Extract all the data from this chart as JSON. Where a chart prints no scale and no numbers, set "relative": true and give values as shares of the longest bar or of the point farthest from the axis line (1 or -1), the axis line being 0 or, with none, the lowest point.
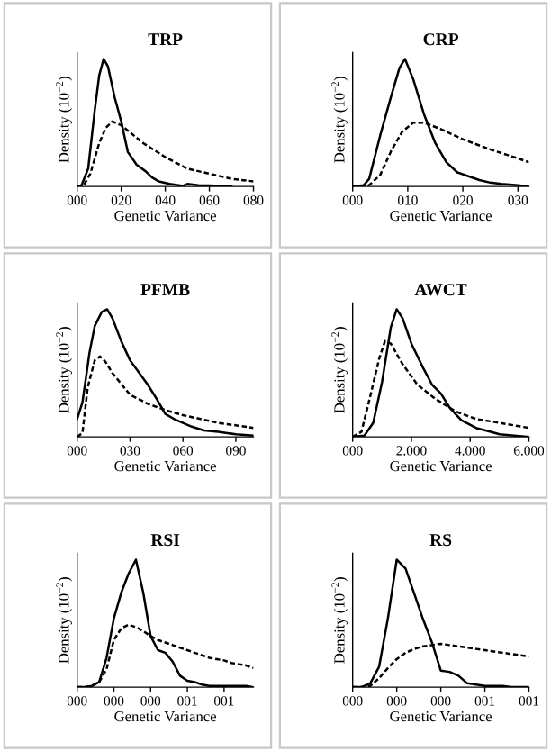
{
  "chart_data": [
    {
      "type": "line",
      "title": "TRP",
      "xlabel": "Genetic Variance",
      "ylabel": "Density (10$^{−2}$)",
      "relative": true,
      "xlim": [
        0,
        80
      ],
      "xticks": [
        {
          "value": 0,
          "label": "000"
        },
        {
          "value": 20,
          "label": "020"
        },
        {
          "value": 40,
          "label": "040"
        },
        {
          "value": 60,
          "label": "060"
        },
        {
          "value": 80,
          "label": "080"
        }
      ],
      "grid": false,
      "legend": false,
      "marker": "none",
      "series": [
        {
          "color": "#000000",
          "line_style": "solid",
          "x": [
            0,
            2,
            5,
            8,
            10,
            12,
            14,
            17,
            20,
            23,
            27,
            31,
            34,
            37,
            42,
            46,
            48,
            50,
            55,
            60,
            70
          ],
          "values": [
            0,
            0.01,
            0.14,
            0.6,
            0.87,
            1,
            0.94,
            0.7,
            0.51,
            0.27,
            0.17,
            0.12,
            0.07,
            0.04,
            0.02,
            0.01,
            0.005,
            0.02,
            0.01,
            0.007,
            0
          ]
        },
        {
          "color": "#000000",
          "line_style": "dashed",
          "x": [
            0,
            3,
            6,
            10,
            13,
            16,
            20,
            25,
            30,
            40,
            50,
            60,
            70,
            80
          ],
          "values": [
            0,
            0.01,
            0.1,
            0.34,
            0.46,
            0.51,
            0.48,
            0.41,
            0.34,
            0.23,
            0.14,
            0.1,
            0.06,
            0.04
          ]
        }
      ]
    },
    {
      "type": "line",
      "title": "CRP",
      "xlabel": "Genetic Variance",
      "ylabel": "Density (10$^{−2}$)",
      "relative": true,
      "xlim": [
        0,
        32
      ],
      "xticks": [
        {
          "value": 0,
          "label": "000"
        },
        {
          "value": 10,
          "label": "010"
        },
        {
          "value": 20,
          "label": "020"
        },
        {
          "value": 30,
          "label": "030"
        }
      ],
      "grid": false,
      "legend": false,
      "marker": "none",
      "series": [
        {
          "color": "#000000",
          "line_style": "solid",
          "x": [
            0,
            2,
            3,
            5,
            7,
            8.5,
            9.5,
            11,
            13,
            15,
            17,
            19,
            21,
            23,
            25,
            27,
            30,
            32
          ],
          "values": [
            0,
            0.01,
            0.06,
            0.4,
            0.71,
            0.93,
            1,
            0.84,
            0.56,
            0.34,
            0.19,
            0.11,
            0.08,
            0.05,
            0.03,
            0.02,
            0.01,
            0
          ]
        },
        {
          "color": "#000000",
          "line_style": "dashed",
          "x": [
            0,
            3,
            5,
            7,
            9,
            11,
            13,
            16,
            20,
            25,
            30,
            32
          ],
          "values": [
            0,
            0.01,
            0.09,
            0.28,
            0.43,
            0.5,
            0.5,
            0.45,
            0.37,
            0.29,
            0.22,
            0.19
          ]
        }
      ]
    },
    {
      "type": "line",
      "title": "PFMB",
      "xlabel": "Genetic Variance",
      "ylabel": "Density (10$^{−2}$)",
      "relative": true,
      "xlim": [
        0,
        100
      ],
      "xticks": [
        {
          "value": 0,
          "label": "000"
        },
        {
          "value": 30,
          "label": "030"
        },
        {
          "value": 60,
          "label": "060"
        },
        {
          "value": 90,
          "label": "090"
        }
      ],
      "grid": false,
      "legend": false,
      "marker": "none",
      "series": [
        {
          "color": "#000000",
          "line_style": "solid",
          "x": [
            0,
            3,
            7,
            10,
            14,
            17,
            20,
            25,
            30,
            40,
            45,
            50,
            55,
            60,
            65,
            72,
            80,
            90,
            100
          ],
          "values": [
            0.14,
            0.27,
            0.66,
            0.87,
            0.98,
            1,
            0.93,
            0.75,
            0.6,
            0.41,
            0.3,
            0.18,
            0.14,
            0.11,
            0.08,
            0.05,
            0.04,
            0.02,
            0.01
          ]
        },
        {
          "color": "#000000",
          "line_style": "dashed",
          "x": [
            0,
            3,
            6,
            10,
            13,
            16,
            20,
            30,
            40,
            50,
            60,
            70,
            80,
            90,
            100
          ],
          "values": [
            0,
            0.03,
            0.39,
            0.6,
            0.63,
            0.59,
            0.5,
            0.33,
            0.26,
            0.21,
            0.17,
            0.14,
            0.11,
            0.09,
            0.07
          ]
        }
      ]
    },
    {
      "type": "line",
      "title": "AWCT",
      "xlabel": "Genetic Variance",
      "ylabel": "Density (10$^{−2}$)",
      "relative": true,
      "xlim": [
        0,
        6000
      ],
      "xticks": [
        {
          "value": 0,
          "label": "000"
        },
        {
          "value": 2000,
          "label": "2.000"
        },
        {
          "value": 4000,
          "label": "4.000"
        },
        {
          "value": 6000,
          "label": "6.000"
        }
      ],
      "grid": false,
      "legend": false,
      "marker": "none",
      "series": [
        {
          "color": "#000000",
          "line_style": "solid",
          "x": [
            0,
            400,
            700,
            1000,
            1300,
            1500,
            1700,
            2000,
            2400,
            2700,
            3000,
            3300,
            3700,
            4200,
            4700,
            5000,
            6000
          ],
          "values": [
            0,
            0.01,
            0.11,
            0.43,
            0.86,
            1,
            0.93,
            0.73,
            0.54,
            0.41,
            0.34,
            0.23,
            0.13,
            0.07,
            0.04,
            0.02,
            0
          ]
        },
        {
          "color": "#000000",
          "line_style": "dashed",
          "x": [
            0,
            300,
            600,
            900,
            1100,
            1300,
            1700,
            2200,
            2800,
            3500,
            4200,
            5000,
            6000
          ],
          "values": [
            0,
            0.04,
            0.32,
            0.61,
            0.75,
            0.73,
            0.57,
            0.41,
            0.3,
            0.2,
            0.14,
            0.11,
            0.07
          ]
        }
      ]
    },
    {
      "type": "line",
      "title": "RSI",
      "xlabel": "Genetic Variance",
      "ylabel": "Density (10$^{−2}$)",
      "relative": true,
      "categories": [
        "000",
        null,
        null,
        null,
        null,
        "000",
        null,
        null,
        null,
        null,
        "000",
        null,
        null,
        null,
        null,
        "001",
        null,
        null,
        null,
        null,
        "001",
        null,
        null,
        null,
        null
      ],
      "grid": false,
      "legend": false,
      "marker": "none",
      "series": [
        {
          "color": "#000000",
          "line_style": "solid",
          "values": [
            0,
            0,
            0.01,
            0.04,
            0.23,
            0.54,
            0.74,
            0.89,
            1,
            0.74,
            0.4,
            0.29,
            0.27,
            0.2,
            0.09,
            0.05,
            0.04,
            0.02,
            0.01,
            0.01,
            0.01,
            0.01,
            0.01,
            0.01,
            0
          ]
        },
        {
          "color": "#000000",
          "line_style": "dashed",
          "values": [
            0,
            0,
            0.01,
            0.04,
            0.14,
            0.37,
            0.46,
            0.49,
            0.47,
            0.44,
            0.4,
            0.37,
            0.35,
            0.33,
            0.31,
            0.29,
            0.27,
            0.25,
            0.23,
            0.22,
            0.21,
            0.19,
            0.18,
            0.17,
            0.15
          ]
        }
      ]
    },
    {
      "type": "line",
      "title": "RS",
      "xlabel": "Genetic Variance",
      "ylabel": "Density (10$^{−2}$)",
      "relative": true,
      "categories": [
        "000",
        null,
        null,
        null,
        null,
        "000",
        null,
        null,
        null,
        null,
        "000",
        null,
        null,
        null,
        null,
        "001",
        null,
        null,
        null,
        null,
        "001"
      ],
      "grid": false,
      "legend": false,
      "marker": "none",
      "series": [
        {
          "color": "#000000",
          "line_style": "solid",
          "values": [
            0,
            0,
            0.03,
            0.16,
            0.54,
            1,
            0.93,
            0.73,
            0.53,
            0.35,
            0.13,
            0.12,
            0.09,
            0.03,
            0.02,
            0.01,
            0.01,
            0.01,
            0,
            0,
            0
          ]
        },
        {
          "color": "#000000",
          "line_style": "dashed",
          "values": [
            0,
            0,
            0.01,
            0.07,
            0.15,
            0.22,
            0.27,
            0.3,
            0.32,
            0.33,
            0.34,
            0.33,
            0.32,
            0.31,
            0.3,
            0.29,
            0.28,
            0.27,
            0.26,
            0.25,
            0.24
          ]
        }
      ]
    }
  ]
}
